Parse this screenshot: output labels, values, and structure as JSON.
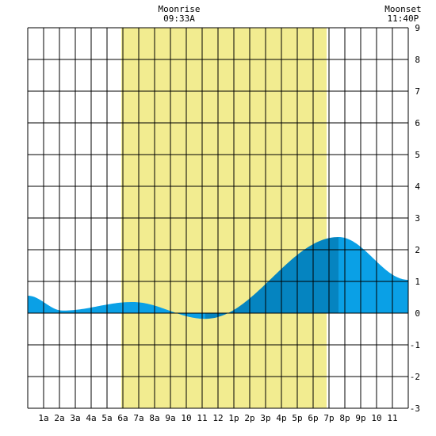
{
  "chart_data": {
    "type": "area",
    "title": "",
    "xlabel": "",
    "ylabel": "",
    "x_range_hours": [
      0,
      24
    ],
    "ylim": [
      -3,
      9
    ],
    "y_ticks": [
      -3,
      -2,
      -1,
      0,
      1,
      2,
      3,
      4,
      5,
      6,
      7,
      8,
      9
    ],
    "x_tick_labels": [
      "1a",
      "2a",
      "3a",
      "4a",
      "5a",
      "6a",
      "7a",
      "8a",
      "9a",
      "10",
      "11",
      "12",
      "1p",
      "2p",
      "3p",
      "4p",
      "5p",
      "6p",
      "7p",
      "8p",
      "9p",
      "10",
      "11"
    ],
    "grid": true,
    "daylight": {
      "start_hour": 5.9,
      "end_hour": 18.85
    },
    "annotations": [
      {
        "label": "Moonrise",
        "time": "09:33A",
        "hour": 9.55
      },
      {
        "label": "Moonset",
        "time": "11:40P",
        "hour": 23.67
      }
    ],
    "tide_extremes": [
      {
        "hour": 0.0,
        "value": 0.55
      },
      {
        "hour": 2.2,
        "value": 0.08
      },
      {
        "hour": 6.6,
        "value": 0.35
      },
      {
        "hour": 11.2,
        "value": -0.18
      },
      {
        "hour": 19.6,
        "value": 2.4
      },
      {
        "hour": 24.0,
        "value": 1.05
      }
    ],
    "shade_breaks": [
      6.6,
      11.2,
      19.6
    ],
    "colors": {
      "daylight": "#f2ec90",
      "tide_light": "#0aa0e6",
      "tide_dark": "#0584c0",
      "grid": "#000000",
      "background": "#ffffff"
    }
  }
}
